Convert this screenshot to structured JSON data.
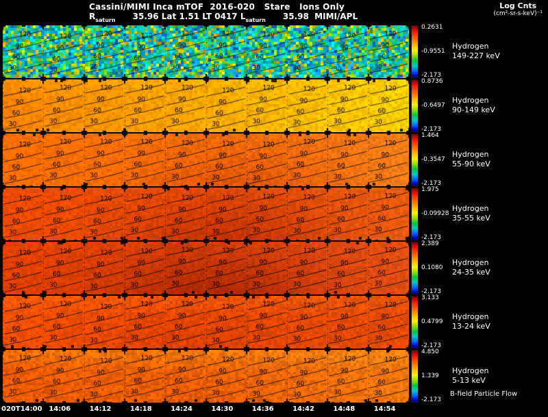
{
  "header": {
    "title": "Cassini/MIMI Inca mTOF  2016-020   Stare   Ions Only",
    "units_line1": "Log Cnts",
    "units_line2": "(cm²-sr-s-keV)⁻¹",
    "r_label": "R",
    "r_sub": "saturn",
    "mid_text": "      35.96 Lat 1.51 LT 0417 L",
    "l_sub": "saturn",
    "end_text": "      35.98  MIMI/APL"
  },
  "footer": {
    "bfield_note": "B-field Particle Flow"
  },
  "time_axis": {
    "labels": [
      "020T14:00",
      "14:06",
      "14:12",
      "14:18",
      "14:24",
      "14:30",
      "14:36",
      "14:42",
      "14:48",
      "14:54"
    ]
  },
  "chart_data": {
    "type": "heatmap",
    "title": "Cassini/MIMI Inca mTOF 2016-020 Stare Ions Only",
    "instrument_credit": "MIMI/APL",
    "colorbar_units": "Log Cnts (cm²-sr-s-keV)⁻¹",
    "contour_labels": [
      "120",
      "90",
      "60",
      "30"
    ],
    "subframes_per_row": 10,
    "x_start": "020T14:00",
    "x_end": "14:54",
    "x_step_minutes": 6,
    "colorbar_stops": [
      "#7a0000 0%",
      "#d40000 6%",
      "#ff2a00 14%",
      "#ff7a00 28%",
      "#ffc800 40%",
      "#fff000 48%",
      "#96dc00 58%",
      "#00c83c 68%",
      "#00c8c8 78%",
      "#0064ff 88%",
      "#0000d2 96%",
      "#000078 100%"
    ],
    "panels": [
      {
        "species": "Hydrogen",
        "energy_range": "149-227 keV",
        "colorbar": {
          "max": "0.2631",
          "mid": "-0.9551",
          "min": "-2.173"
        },
        "render": {
          "mode": "speckle",
          "palette": [
            "#00d7d7",
            "#00c8a5",
            "#2bc353",
            "#86d400",
            "#d8e100",
            "#19a0e6",
            "#2361d2",
            "#e6af00",
            "#0082c8"
          ],
          "weights": [
            20,
            15,
            15,
            12,
            7,
            12,
            6,
            8,
            6
          ],
          "noise": 0.22,
          "seed": 11
        }
      },
      {
        "species": "Hydrogen",
        "energy_range": "90-149 keV",
        "colorbar": {
          "max": "0.8736",
          "mid": "-0.6497",
          "min": "-2.173"
        },
        "render": {
          "mode": "gradient",
          "left": "#ff8200",
          "right": "#ffd200",
          "noise": 0.1,
          "top": "#ffc800",
          "topStrength": 0.25,
          "seed": 22
        }
      },
      {
        "species": "Hydrogen",
        "energy_range": "55-90 keV",
        "colorbar": {
          "max": "1.464",
          "mid": "-0.3547",
          "min": "-2.173"
        },
        "render": {
          "mode": "gradient",
          "left": "#ff6e00",
          "right": "#fa8219",
          "noise": 0.09,
          "dark": "#cd3700",
          "darkCenter": 0.58,
          "darkStrength": 0.55,
          "seed": 33
        }
      },
      {
        "species": "Hydrogen",
        "energy_range": "35-55 keV",
        "colorbar": {
          "max": "1.975",
          "mid": "-0.09928",
          "min": "-2.173"
        },
        "render": {
          "mode": "gradient",
          "left": "#f04b00",
          "right": "#f05f0f",
          "noise": 0.08,
          "dark": "#aa1900",
          "darkCenter": 0.55,
          "darkStrength": 0.6,
          "seed": 44
        }
      },
      {
        "species": "Hydrogen",
        "energy_range": "24-35 keV",
        "colorbar": {
          "max": "2.389",
          "mid": "0.1080",
          "min": "-2.173"
        },
        "render": {
          "mode": "gradient",
          "left": "#e64100",
          "right": "#e65014",
          "noise": 0.08,
          "dark": "#8c1400",
          "darkCenter": 0.52,
          "darkStrength": 0.62,
          "seed": 55
        }
      },
      {
        "species": "Hydrogen",
        "energy_range": "13-24 keV",
        "colorbar": {
          "max": "3.133",
          "mid": "0.4799",
          "min": "-2.173"
        },
        "render": {
          "mode": "gradient",
          "left": "#f55000",
          "right": "#e64b05",
          "noise": 0.1,
          "dark": "#c32800",
          "darkCenter": 0.45,
          "darkStrength": 0.35,
          "top": "#ff7d1e",
          "topStrength": 0.3,
          "seed": 66
        }
      },
      {
        "species": "Hydrogen",
        "energy_range": "5-13 keV",
        "colorbar": {
          "max": "4.850",
          "mid": "1.339",
          "min": "-2.173"
        },
        "render": {
          "mode": "gradient",
          "left": "#f05a00",
          "right": "#f5780f",
          "noise": 0.13,
          "dark": "#d23c00",
          "darkCenter": 0.5,
          "darkStrength": 0.3,
          "top": "#ffa019",
          "topStrength": 0.45,
          "seed": 77
        }
      }
    ]
  }
}
